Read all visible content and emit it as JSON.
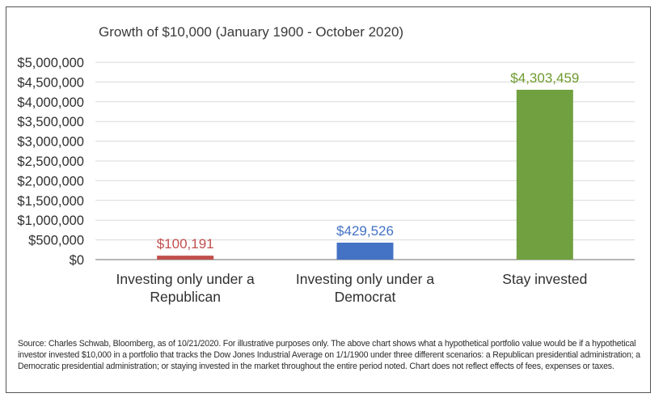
{
  "chart_data": {
    "type": "bar",
    "title": "Growth of $10,000 (January 1900 - October 2020)",
    "categories": [
      [
        "Investing only under a",
        "Republican"
      ],
      [
        "Investing only under a",
        "Democrat"
      ],
      [
        "Stay invested"
      ]
    ],
    "values": [
      100191,
      429526,
      4303459
    ],
    "value_labels": [
      "$100,191",
      "$429,526",
      "$4,303,459"
    ],
    "colors": [
      "#c0504d",
      "#4472c4",
      "#70a040"
    ],
    "label_colors": [
      "#c0504d",
      "#4472c4",
      "#6e9a2e"
    ],
    "ylim": [
      0,
      5000000
    ],
    "yticks": [
      0,
      500000,
      1000000,
      1500000,
      2000000,
      2500000,
      3000000,
      3500000,
      4000000,
      4500000,
      5000000
    ],
    "ytick_labels": [
      "$0",
      "$500,000",
      "$1,000,000",
      "$1,500,000",
      "$2,000,000",
      "$2,500,000",
      "$3,000,000",
      "$3,500,000",
      "$4,000,000",
      "$4,500,000",
      "$5,000,000"
    ],
    "grid": true,
    "xlabel": "",
    "ylabel": ""
  },
  "source_note": "Source: Charles Schwab, Bloomberg, as of 10/21/2020. For illustrative purposes only.  The above chart shows what a hypothetical portfolio value would be if a hypothetical investor invested $10,000 in a portfolio that tracks the Dow Jones Industrial Average on 1/1/1900 under three different scenarios: a Republican presidential administration; a Democratic presidential administration; or staying invested in the market throughout the entire period noted. Chart does not reflect effects of fees, expenses or taxes."
}
